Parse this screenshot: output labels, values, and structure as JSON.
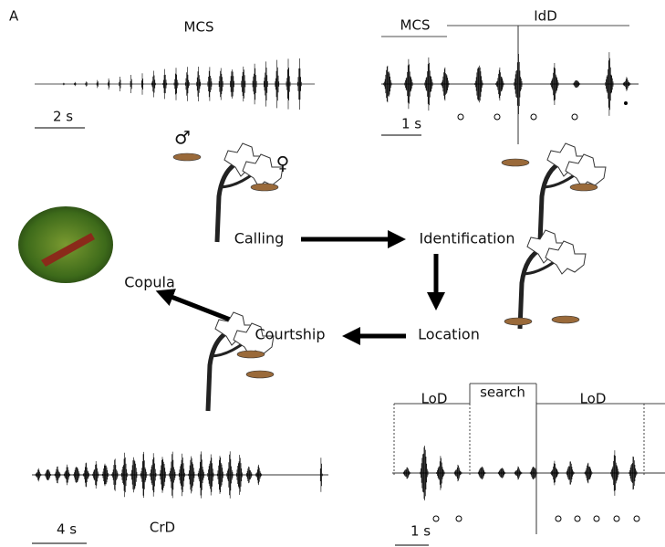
{
  "panel_label": "A",
  "mcs_recording": {
    "title": "MCS",
    "scale": "2 s"
  },
  "idd_recording": {
    "segments": [
      "MCS",
      "IdD"
    ],
    "scale": "1 s"
  },
  "symbols": {
    "male": "♂",
    "female": "♀"
  },
  "stages": [
    "Calling",
    "Identification",
    "Location",
    "Courtship",
    "Copula"
  ],
  "lod_recording": {
    "segments": [
      "LoD",
      "search",
      "LoD"
    ],
    "scale": "1 s"
  },
  "crd_recording": {
    "title": "CrD",
    "scale": "4 s"
  }
}
